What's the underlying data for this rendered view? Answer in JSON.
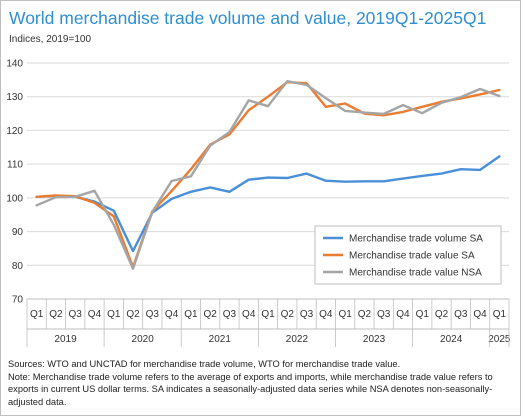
{
  "title": "World merchandise trade volume and value, 2019Q1-2025Q1",
  "subtitle": "Indices, 2019=100",
  "notes": {
    "sources": "Sources: WTO and UNCTAD for merchandise trade volume, WTO for merchandise trade value.",
    "note": "Note: Merchandise trade volume refers to the average of exports and imports, while merchandise trade value refers to exports in current US dollar terms.  SA indicates a seasonally-adjusted data series while NSA denotes non-seasonally-adjusted data."
  },
  "chart_data": {
    "type": "line",
    "categories": [
      "Q1",
      "Q2",
      "Q3",
      "Q4",
      "Q1",
      "Q2",
      "Q3",
      "Q4",
      "Q1",
      "Q2",
      "Q3",
      "Q4",
      "Q1",
      "Q2",
      "Q3",
      "Q4",
      "Q1",
      "Q2",
      "Q3",
      "Q4",
      "Q1",
      "Q2",
      "Q3",
      "Q4",
      "Q1"
    ],
    "year_groups": [
      {
        "label": "2019",
        "start": 0,
        "count": 4
      },
      {
        "label": "2020",
        "start": 4,
        "count": 4
      },
      {
        "label": "2021",
        "start": 8,
        "count": 4
      },
      {
        "label": "2022",
        "start": 12,
        "count": 4
      },
      {
        "label": "2023",
        "start": 16,
        "count": 4
      },
      {
        "label": "2024",
        "start": 20,
        "count": 4
      },
      {
        "label": "2025",
        "start": 24,
        "count": 1
      }
    ],
    "ylim": [
      70,
      140
    ],
    "yticks": [
      70,
      80,
      90,
      100,
      110,
      120,
      130,
      140
    ],
    "grid": true,
    "legend_position": "bottom-right",
    "series": [
      {
        "name": "Merchandise trade volume SA",
        "color": "#4a90d9",
        "values": [
          100.3,
          100.6,
          100.3,
          98.9,
          96.2,
          84.2,
          95.6,
          99.7,
          101.8,
          103.1,
          101.8,
          105.4,
          106.0,
          105.9,
          107.2,
          105.1,
          104.8,
          104.9,
          104.9,
          105.7,
          106.5,
          107.2,
          108.5,
          108.3,
          112.3
        ]
      },
      {
        "name": "Merchandise trade value  SA",
        "color": "#ec7c30",
        "values": [
          100.3,
          100.7,
          100.5,
          98.5,
          94.5,
          79.5,
          96.0,
          102.0,
          108.5,
          115.8,
          118.8,
          126.0,
          130.0,
          134.3,
          134.0,
          127.0,
          128.0,
          125.0,
          124.5,
          125.5,
          127.0,
          128.5,
          129.5,
          130.7,
          132.0
        ]
      },
      {
        "name": "Merchandise trade value NSA",
        "color": "#a5a5a5",
        "values": [
          97.8,
          100.2,
          100.3,
          102.1,
          92.0,
          79.0,
          95.8,
          105.0,
          106.4,
          115.5,
          119.5,
          128.9,
          127.2,
          134.6,
          133.5,
          129.6,
          125.8,
          125.3,
          124.9,
          127.5,
          125.1,
          128.2,
          129.9,
          132.3,
          130.2
        ]
      }
    ]
  }
}
